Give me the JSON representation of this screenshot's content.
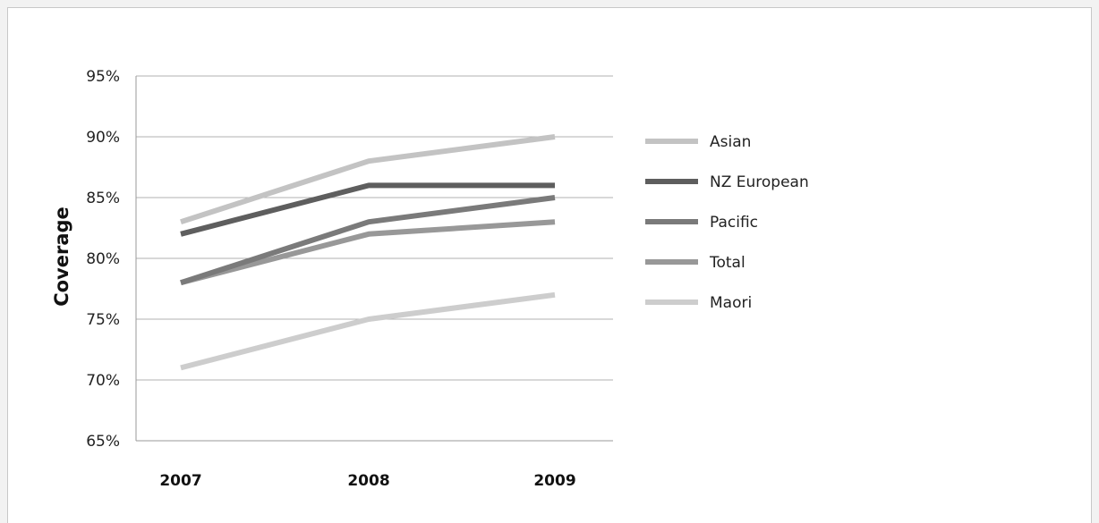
{
  "chart_data": {
    "type": "line",
    "ylabel": "Coverage",
    "categories": [
      "2007",
      "2008",
      "2009"
    ],
    "ylim": [
      65,
      95
    ],
    "yticks": [
      "65%",
      "70%",
      "75%",
      "80%",
      "85%",
      "90%",
      "95%"
    ],
    "ytick_values": [
      65,
      70,
      75,
      80,
      85,
      90,
      95
    ],
    "grid": true,
    "legend_position": "right",
    "series": [
      {
        "name": "Asian",
        "values": [
          83,
          88,
          90
        ],
        "color": "#c3c3c3"
      },
      {
        "name": "NZ European",
        "values": [
          82,
          86,
          86
        ],
        "color": "#5e5e5e"
      },
      {
        "name": "Pacific",
        "values": [
          78,
          83,
          85
        ],
        "color": "#7a7a7a"
      },
      {
        "name": "Total",
        "values": [
          78,
          82,
          83
        ],
        "color": "#989898"
      },
      {
        "name": "Maori",
        "values": [
          71,
          75,
          77
        ],
        "color": "#cdcdcd"
      }
    ]
  }
}
